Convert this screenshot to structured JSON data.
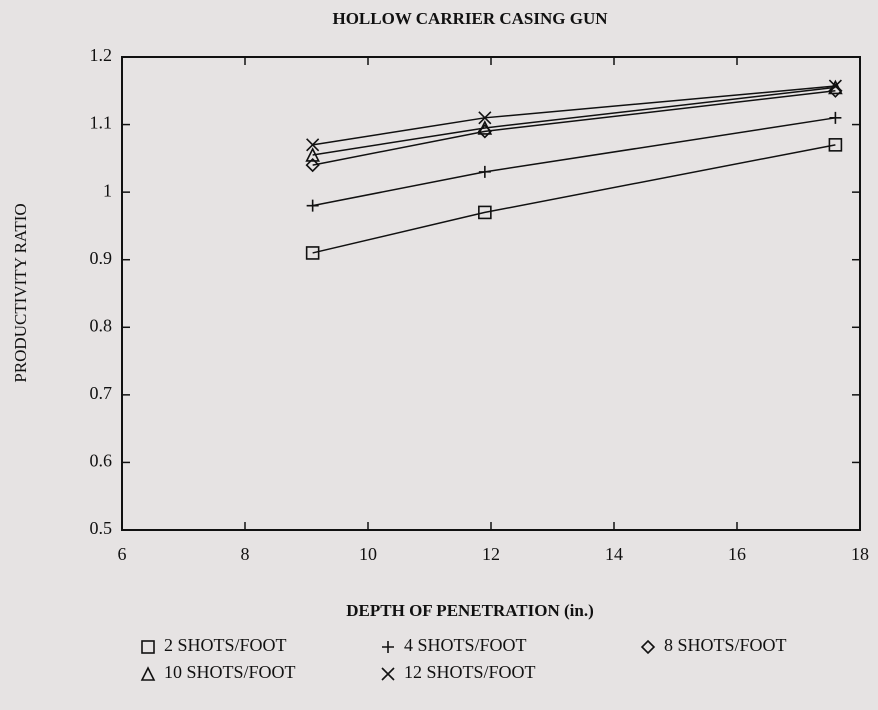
{
  "chart_data": {
    "type": "line",
    "title": "HOLLOW CARRIER CASING GUN",
    "xlabel": "DEPTH OF PENETRATION (in.)",
    "ylabel": "PRODUCTIVITY RATIO",
    "x": [
      9.1,
      11.9,
      17.6
    ],
    "series": [
      {
        "name": "2 SHOTS/FOOT",
        "marker": "square",
        "color": "#111111",
        "values": [
          0.91,
          0.97,
          1.07
        ]
      },
      {
        "name": "4 SHOTS/FOOT",
        "marker": "plus",
        "color": "#111111",
        "values": [
          0.98,
          1.03,
          1.11
        ]
      },
      {
        "name": "8 SHOTS/FOOT",
        "marker": "diamond",
        "color": "#111111",
        "values": [
          1.04,
          1.09,
          1.15
        ]
      },
      {
        "name": "10 SHOTS/FOOT",
        "marker": "triangle",
        "color": "#111111",
        "values": [
          1.055,
          1.095,
          1.155
        ]
      },
      {
        "name": "12 SHOTS/FOOT",
        "marker": "cross",
        "color": "#111111",
        "values": [
          1.07,
          1.11,
          1.157
        ]
      }
    ],
    "xlim": [
      6,
      18
    ],
    "xticks": [
      6,
      8,
      10,
      12,
      14,
      16,
      18
    ],
    "ylim": [
      0.5,
      1.2
    ],
    "yticks": [
      0.5,
      0.6,
      0.7,
      0.8,
      0.9,
      1,
      1.1,
      1.2
    ],
    "grid": false,
    "legend": "bottom"
  }
}
